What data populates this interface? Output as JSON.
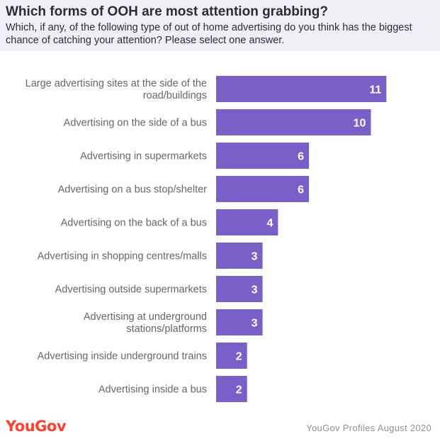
{
  "header": {
    "title": "Which forms of OOH are most attention grabbing?",
    "subtitle": "Which, if any, of the following type of out of home advertising do you think has the biggest chance of catching your attention? Please select one answer."
  },
  "footer": {
    "logo": "YouGov",
    "source": "YouGov Profiles August 2020"
  },
  "colors": {
    "bar": "#7b5fc8",
    "label": "#666666",
    "value": "#ffffff",
    "logo": "#ff412c",
    "header_bg": "#f1eef6"
  },
  "chart_data": {
    "type": "bar",
    "orientation": "horizontal",
    "categories": [
      "Large advertising sites at the side of the road/buildings",
      "Advertising on the side of a bus",
      "Advertising in supermarkets",
      "Advertising on a bus stop/shelter",
      "Advertising on the back of a bus",
      "Advertising in shopping centres/malls",
      "Advertising outside supermarkets",
      "Advertising at underground stations/platforms",
      "Advertising inside underground trains",
      "Advertising inside a bus"
    ],
    "category_lines": [
      [
        "Large advertising sites at the side of the",
        "road/buildings"
      ],
      [
        "Advertising on the side of a bus"
      ],
      [
        "Advertising in supermarkets"
      ],
      [
        "Advertising on a bus stop/shelter"
      ],
      [
        "Advertising on the back of a bus"
      ],
      [
        "Advertising in shopping centres/malls"
      ],
      [
        "Advertising outside supermarkets"
      ],
      [
        "Advertising at underground",
        "stations/platforms"
      ],
      [
        "Advertising inside underground trains"
      ],
      [
        "Advertising inside a bus"
      ]
    ],
    "values": [
      11,
      10,
      6,
      6,
      4,
      3,
      3,
      3,
      2,
      2
    ],
    "display_values": [
      11,
      10,
      6,
      6,
      4,
      3,
      3,
      3,
      2,
      2
    ],
    "xlim": [
      0,
      13
    ],
    "grid": false,
    "legend": "none"
  }
}
